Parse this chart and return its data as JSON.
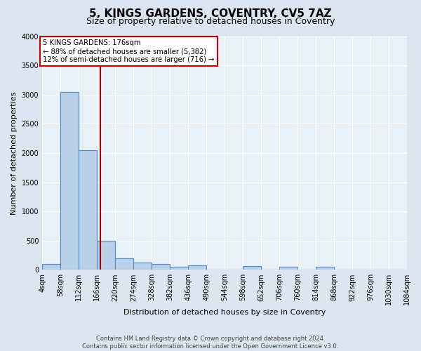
{
  "title": "5, KINGS GARDENS, COVENTRY, CV5 7AZ",
  "subtitle": "Size of property relative to detached houses in Coventry",
  "xlabel": "Distribution of detached houses by size in Coventry",
  "ylabel": "Number of detached properties",
  "footer_line1": "Contains HM Land Registry data © Crown copyright and database right 2024.",
  "footer_line2": "Contains public sector information licensed under the Open Government Licence v3.0.",
  "bin_edges": [
    4,
    58,
    112,
    166,
    220,
    274,
    328,
    382,
    436,
    490,
    544,
    598,
    652,
    706,
    760,
    814,
    868,
    922,
    976,
    1030,
    1084
  ],
  "bar_heights": [
    100,
    3050,
    2050,
    500,
    200,
    120,
    100,
    55,
    80,
    0,
    0,
    60,
    0,
    55,
    0,
    55,
    0,
    0,
    0,
    0
  ],
  "bar_color": "#b8d0e8",
  "bar_edge_color": "#5588bb",
  "property_size": 176,
  "property_line_color": "#aa0000",
  "ylim": [
    0,
    4000
  ],
  "yticks": [
    0,
    500,
    1000,
    1500,
    2000,
    2500,
    3000,
    3500,
    4000
  ],
  "annotation_text": "5 KINGS GARDENS: 176sqm\n← 88% of detached houses are smaller (5,382)\n12% of semi-detached houses are larger (716) →",
  "annotation_box_color": "#ffffff",
  "annotation_box_edge": "#cc0000",
  "bg_color": "#dce6f0",
  "plot_bg_color": "#e8f0f8",
  "grid_color": "#ffffff",
  "title_fontsize": 11,
  "subtitle_fontsize": 9,
  "label_fontsize": 8,
  "tick_fontsize": 7,
  "footer_fontsize": 6
}
